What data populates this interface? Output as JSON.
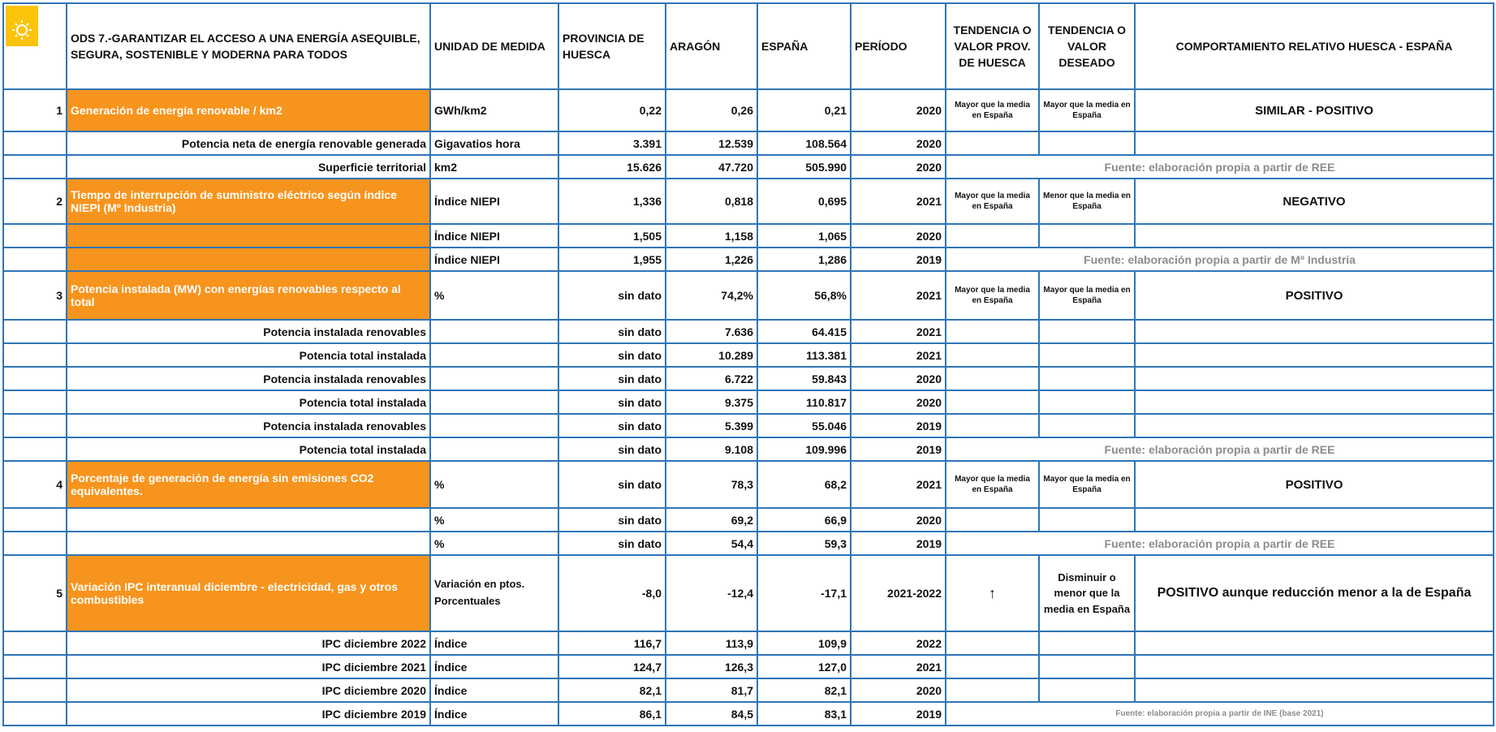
{
  "header": {
    "title": "ODS 7.-GARANTIZAR EL ACCESO A UNA ENERGÍA ASEQUIBLE, SEGURA, SOSTENIBLE Y MODERNA PARA TODOS",
    "columns": [
      "UNIDAD DE MEDIDA",
      "PROVINCIA DE HUESCA",
      "ARAGÓN",
      "ESPAÑA",
      "PERÍODO",
      "TENDENCIA O VALOR PROV. DE HUESCA",
      "TENDENCIA O VALOR DESEADO",
      "COMPORTAMIENTO RELATIVO HUESCA - ESPAÑA"
    ]
  },
  "table": {
    "rows": [
      {
        "n": "1",
        "label": "Generación de energía renovable / km2",
        "unit": "GWh/km2",
        "huesca": "0,22",
        "aragon": "0,26",
        "espana": "0,21",
        "period": "2020",
        "trend": "Mayor que la media en España",
        "desired": "Mayor que la media en España",
        "behavior": "SIMILAR - POSITIVO"
      },
      {
        "label": "Potencia neta de energía renovable generada",
        "unit": "Gigavatios hora",
        "huesca": "3.391",
        "aragon": "12.539",
        "espana": "108.564",
        "period": "2020"
      },
      {
        "label": "Superficie territorial",
        "unit": "km2",
        "huesca": "15.626",
        "aragon": "47.720",
        "espana": "505.990",
        "period": "2020",
        "source": "Fuente: elaboración propia a partir de REE"
      },
      {
        "n": "2",
        "label": "Tiempo de interrupción de suministro eléctrico según índice NIEPI (Mº Industria)",
        "unit": "Índice NIEPI",
        "huesca": "1,336",
        "aragon": "0,818",
        "espana": "0,695",
        "period": "2021",
        "trend": "Mayor que la media en España",
        "desired": "Menor que la media en España",
        "behavior": "NEGATIVO"
      },
      {
        "unit": "Índice NIEPI",
        "huesca": "1,505",
        "aragon": "1,158",
        "espana": "1,065",
        "period": "2020"
      },
      {
        "unit": "Índice NIEPI",
        "huesca": "1,955",
        "aragon": "1,226",
        "espana": "1,286",
        "period": "2019",
        "source": "Fuente: elaboración propia a partir de Mº Industria"
      },
      {
        "n": "3",
        "label": "Potencia instalada (MW) con energías renovables respecto al total",
        "unit": "%",
        "huesca": "sin dato",
        "aragon": "74,2%",
        "espana": "56,8%",
        "period": "2021",
        "trend": "Mayor que la media en España",
        "desired": "Mayor que la media en España",
        "behavior": "POSITIVO"
      },
      {
        "label": "Potencia instalada renovables",
        "huesca": "sin dato",
        "aragon": "7.636",
        "espana": "64.415",
        "period": "2021"
      },
      {
        "label": "Potencia total instalada",
        "huesca": "sin dato",
        "aragon": "10.289",
        "espana": "113.381",
        "period": "2021"
      },
      {
        "label": "Potencia instalada renovables",
        "huesca": "sin dato",
        "aragon": "6.722",
        "espana": "59.843",
        "period": "2020"
      },
      {
        "label": "Potencia total instalada",
        "huesca": "sin dato",
        "aragon": "9.375",
        "espana": "110.817",
        "period": "2020"
      },
      {
        "label": "Potencia instalada renovables",
        "huesca": "sin dato",
        "aragon": "5.399",
        "espana": "55.046",
        "period": "2019"
      },
      {
        "label": "Potencia total instalada",
        "huesca": "sin dato",
        "aragon": "9.108",
        "espana": "109.996",
        "period": "2019",
        "source": "Fuente: elaboración propia a partir de REE"
      },
      {
        "n": "4",
        "label": "Porcentaje de generación de energía sin emisiones CO2 equivalentes.",
        "unit": "%",
        "huesca": "sin dato",
        "aragon": "78,3",
        "espana": "68,2",
        "period": "2021",
        "trend": "Mayor que la media en España",
        "desired": "Mayor que la media en España",
        "behavior": "POSITIVO"
      },
      {
        "unit": "%",
        "huesca": "sin dato",
        "aragon": "69,2",
        "espana": "66,9",
        "period": "2020"
      },
      {
        "unit": "%",
        "huesca": "sin dato",
        "aragon": "54,4",
        "espana": "59,3",
        "period": "2019",
        "source": "Fuente: elaboración propia a partir de REE"
      },
      {
        "n": "5",
        "label": "Variación IPC interanual diciembre - electricidad, gas y otros combustibles",
        "unit": "Variación en ptos. Porcentuales",
        "huesca": "-8,0",
        "aragon": "-12,4",
        "espana": "-17,1",
        "period": "2021-2022",
        "trend": "↑",
        "desired": "Disminuir o menor que la media en España",
        "behavior": "POSITIVO aunque reducción menor a la de España"
      },
      {
        "label": "IPC diciembre 2022",
        "unit": "Índice",
        "huesca": "116,7",
        "aragon": "113,9",
        "espana": "109,9",
        "period": "2022"
      },
      {
        "label": "IPC diciembre 2021",
        "unit": "Índice",
        "huesca": "124,7",
        "aragon": "126,3",
        "espana": "127,0",
        "period": "2021"
      },
      {
        "label": "IPC diciembre 2020",
        "unit": "Índice",
        "huesca": "82,1",
        "aragon": "81,7",
        "espana": "82,1",
        "period": "2020"
      },
      {
        "label": "IPC diciembre 2019",
        "unit": "Índice",
        "huesca": "86,1",
        "aragon": "84,5",
        "espana": "83,1",
        "period": "2019",
        "source": "Fuente: elaboración propia a partir de INE (base 2021)"
      }
    ]
  }
}
